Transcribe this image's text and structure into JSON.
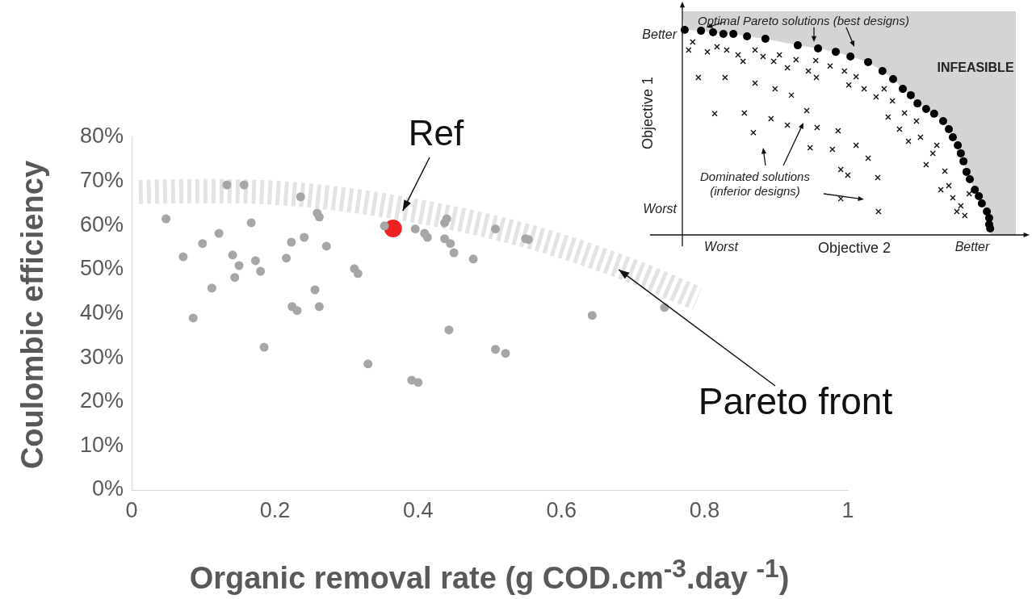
{
  "chart_data": [
    {
      "type": "scatter",
      "xlabel": "Organic removal rate (g COD.cm$^{-3}$.day $^{-1}$)",
      "ylabel": "Coulombic efficiency",
      "xlim": [
        0,
        1
      ],
      "ylim": [
        0,
        80
      ],
      "xticks": [
        0,
        0.2,
        0.4,
        0.6,
        0.8,
        1
      ],
      "yticks": [
        {
          "value": 0,
          "label": "0%"
        },
        {
          "value": 10,
          "label": "10%"
        },
        {
          "value": 20,
          "label": "20%"
        },
        {
          "value": 30,
          "label": "30%"
        },
        {
          "value": 40,
          "label": "40%"
        },
        {
          "value": 50,
          "label": "50%"
        },
        {
          "value": 60,
          "label": "60%"
        },
        {
          "value": 70,
          "label": "70%"
        },
        {
          "value": 80,
          "label": "80%"
        }
      ],
      "series": [
        {
          "type": "line",
          "color": "#e3e3e3",
          "line_style": "dashed",
          "x": [
            0.01,
            0.1,
            0.2,
            0.3,
            0.4,
            0.5,
            0.6,
            0.7,
            0.79
          ],
          "values": [
            67.6,
            67.8,
            67.4,
            65.8,
            63.2,
            59.8,
            55.3,
            49.6,
            43.4
          ]
        },
        {
          "type": "scatter",
          "color": "#a6a6a6",
          "marker": "circle",
          "x": [
            0.048,
            0.072,
            0.086,
            0.099,
            0.112,
            0.122,
            0.133,
            0.141,
            0.144,
            0.15,
            0.157,
            0.167,
            0.173,
            0.18,
            0.185,
            0.216,
            0.223,
            0.224,
            0.231,
            0.236,
            0.241,
            0.256,
            0.259,
            0.262,
            0.262,
            0.272,
            0.311,
            0.316,
            0.33,
            0.353,
            0.391,
            0.396,
            0.4,
            0.409,
            0.413,
            0.437,
            0.437,
            0.44,
            0.443,
            0.445,
            0.45,
            0.477,
            0.508,
            0.508,
            0.522,
            0.55,
            0.554,
            0.643,
            0.744
          ],
          "values": [
            61.5,
            52.9,
            39,
            55.9,
            45.8,
            58.2,
            69.2,
            53.3,
            48.2,
            50.9,
            69.2,
            60.6,
            52,
            49.6,
            32.4,
            52.6,
            56.2,
            41.6,
            40.7,
            66.5,
            57.3,
            45.4,
            62.8,
            61.9,
            41.6,
            55.3,
            50.2,
            49.1,
            28.6,
            59.9,
            24.9,
            59.2,
            24.4,
            58.2,
            57.3,
            57,
            60.6,
            61.5,
            36.3,
            55.9,
            53.8,
            52.4,
            59.2,
            31.9,
            31,
            57,
            56.8,
            39.6,
            41.4
          ]
        },
        {
          "type": "scatter",
          "color": "#ee2222",
          "marker": "circle",
          "x": [
            0.365
          ],
          "values": [
            59.3
          ]
        }
      ],
      "annotations": [
        {
          "text": "Ref",
          "x": 0.365,
          "y": 59.3
        },
        {
          "text": "Pareto front",
          "x": 0.68,
          "y": 50
        }
      ]
    },
    {
      "type": "other",
      "xlabel": "Objective 2",
      "ylabel": "Objective 1",
      "annotations": [
        "Optimal Pareto solutions (best designs)",
        "Dominated solutions\n(inferior designs)",
        "INFEASIBLE",
        "Better",
        "Worst",
        "Worst",
        "Better"
      ]
    }
  ]
}
